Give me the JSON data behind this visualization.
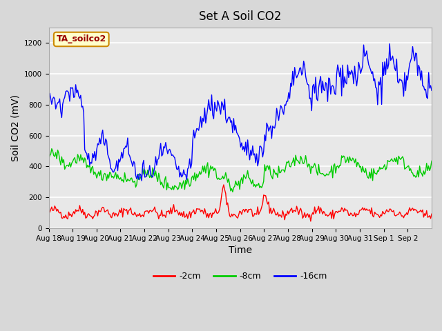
{
  "title": "Set A Soil CO2",
  "xlabel": "Time",
  "ylabel": "Soil CO2 (mV)",
  "ylim": [
    0,
    1300
  ],
  "yticks": [
    0,
    200,
    400,
    600,
    800,
    1000,
    1200
  ],
  "background_color": "#d8d8d8",
  "plot_bg_color": "#e8e8e8",
  "line_colors": {
    "2cm": "#ff0000",
    "8cm": "#00cc00",
    "16cm": "#0000ff"
  },
  "legend_labels": [
    "-2cm",
    "-8cm",
    "-16cm"
  ],
  "annotation_text": "TA_soilco2",
  "annotation_bg": "#ffffcc",
  "annotation_border": "#cc8800",
  "xtick_labels": [
    "Aug 18",
    "Aug 19",
    "Aug 20",
    "Aug 21",
    "Aug 22",
    "Aug 23",
    "Aug 24",
    "Aug 25",
    "Aug 26",
    "Aug 27",
    "Aug 28",
    "Aug 29",
    "Aug 30",
    "Aug 31",
    "Sep 1",
    "Sep 2"
  ]
}
